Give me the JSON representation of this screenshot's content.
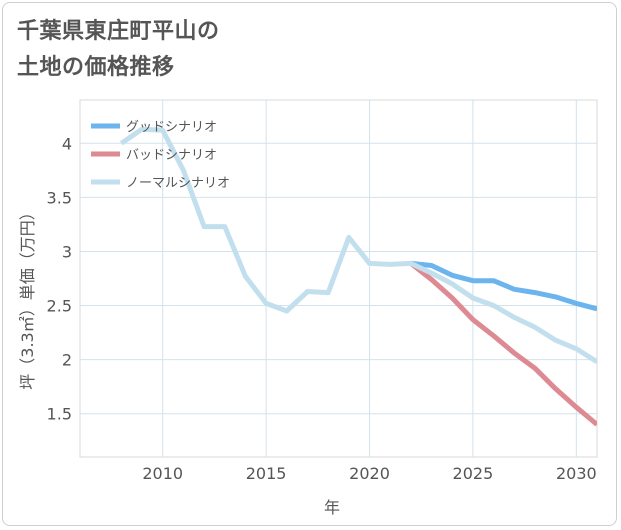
{
  "title_lines": [
    "千葉県東庄町平山の",
    "土地の価格推移"
  ],
  "chart_data": {
    "type": "line",
    "title": "千葉県東庄町平山の土地の価格推移",
    "xlabel": "年",
    "ylabel": "坪（3.3㎡）単価（万円）",
    "xlim": [
      2006,
      2031
    ],
    "ylim": [
      1.1,
      4.4
    ],
    "xticks": [
      2010,
      2015,
      2020,
      2025,
      2030
    ],
    "yticks": [
      1.5,
      2,
      2.5,
      3,
      3.5,
      4
    ],
    "grid": true,
    "legend_position": "top-left",
    "series": [
      {
        "name": "グッドシナリオ",
        "color": "#6cb4ee",
        "x": [
          2022,
          2023,
          2024,
          2025,
          2026,
          2027,
          2028,
          2029,
          2030,
          2031
        ],
        "y": [
          2.89,
          2.87,
          2.78,
          2.73,
          2.73,
          2.65,
          2.62,
          2.58,
          2.52,
          2.47
        ]
      },
      {
        "name": "バッドシナリオ",
        "color": "#dd8a92",
        "x": [
          2022,
          2023,
          2024,
          2025,
          2026,
          2027,
          2028,
          2029,
          2030,
          2031
        ],
        "y": [
          2.89,
          2.74,
          2.57,
          2.37,
          2.22,
          2.06,
          1.92,
          1.73,
          1.56,
          1.4
        ]
      },
      {
        "name": "ノーマルシナリオ",
        "color": "#c2dfee",
        "x": [
          2008,
          2009,
          2010,
          2011,
          2012,
          2013,
          2014,
          2015,
          2016,
          2017,
          2018,
          2019,
          2020,
          2021,
          2022,
          2023,
          2024,
          2025,
          2026,
          2027,
          2028,
          2029,
          2030,
          2031
        ],
        "y": [
          4.0,
          4.13,
          4.12,
          3.75,
          3.23,
          3.23,
          2.77,
          2.52,
          2.45,
          2.63,
          2.62,
          3.13,
          2.89,
          2.88,
          2.89,
          2.8,
          2.7,
          2.57,
          2.5,
          2.39,
          2.3,
          2.18,
          2.1,
          1.98
        ]
      }
    ]
  }
}
